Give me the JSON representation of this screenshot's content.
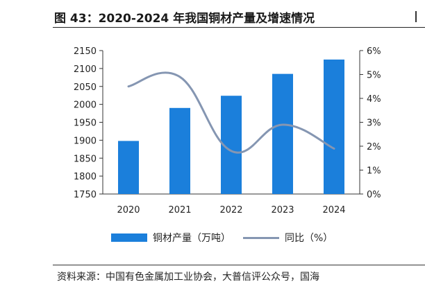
{
  "title": "图 43：2020-2024 年我国铜材产量及增速情况",
  "source": "资料来源：中国有色金属加工业协会，大普信评公众号，国海",
  "colors": {
    "bar": "#1b7fdb",
    "line": "#8596b2"
  },
  "chart_data": {
    "type": "bar",
    "categories": [
      "2020",
      "2021",
      "2022",
      "2023",
      "2024"
    ],
    "series": [
      {
        "name": "铜材产量（万吨）",
        "type": "bar",
        "axis": "left",
        "values": [
          1898,
          1990,
          2024,
          2085,
          2125
        ]
      },
      {
        "name": "同比（%）",
        "type": "line",
        "axis": "right",
        "values": [
          4.5,
          4.9,
          1.8,
          2.9,
          1.9
        ]
      }
    ],
    "ylim": [
      1750,
      2150
    ],
    "yticks": [
      1750,
      1800,
      1850,
      1900,
      1950,
      2000,
      2050,
      2100,
      2150
    ],
    "y2lim": [
      0,
      6
    ],
    "y2ticks": [
      "0%",
      "1%",
      "2%",
      "3%",
      "4%",
      "5%",
      "6%"
    ],
    "legend_position": "bottom"
  }
}
